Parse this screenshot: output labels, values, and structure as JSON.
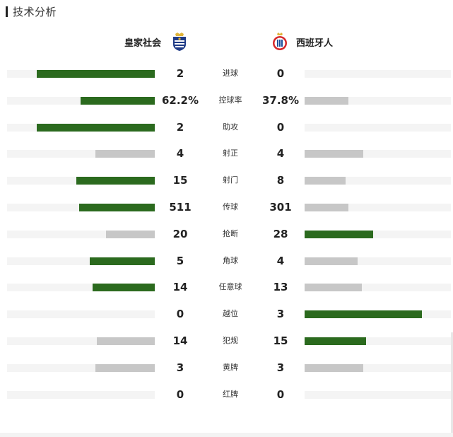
{
  "section": {
    "title": "技术分析"
  },
  "teams": {
    "home": {
      "name": "皇家社会",
      "logo_icon": "real-sociedad-crest-icon"
    },
    "away": {
      "name": "西班牙人",
      "logo_icon": "espanyol-crest-icon"
    }
  },
  "colors": {
    "win": "#2b6a1e",
    "lose": "#c7c7c7",
    "track": "#f4f4f4"
  },
  "stats": [
    {
      "label": "进球",
      "home": "2",
      "away": "0",
      "home_share": 0.8,
      "away_share": 0.0,
      "leader": "home"
    },
    {
      "label": "控球率",
      "home": "62.2%",
      "away": "37.8%",
      "home_share": 0.5,
      "away_share": 0.3,
      "leader": "home"
    },
    {
      "label": "助攻",
      "home": "2",
      "away": "0",
      "home_share": 0.8,
      "away_share": 0.0,
      "leader": "home"
    },
    {
      "label": "射正",
      "home": "4",
      "away": "4",
      "home_share": 0.4,
      "away_share": 0.4,
      "leader": "none"
    },
    {
      "label": "射门",
      "home": "15",
      "away": "8",
      "home_share": 0.53,
      "away_share": 0.28,
      "leader": "home"
    },
    {
      "label": "传球",
      "home": "511",
      "away": "301",
      "home_share": 0.51,
      "away_share": 0.3,
      "leader": "home"
    },
    {
      "label": "抢断",
      "home": "20",
      "away": "28",
      "home_share": 0.33,
      "away_share": 0.47,
      "leader": "away"
    },
    {
      "label": "角球",
      "home": "5",
      "away": "4",
      "home_share": 0.44,
      "away_share": 0.36,
      "leader": "home"
    },
    {
      "label": "任意球",
      "home": "14",
      "away": "13",
      "home_share": 0.42,
      "away_share": 0.39,
      "leader": "home"
    },
    {
      "label": "越位",
      "home": "0",
      "away": "3",
      "home_share": 0.0,
      "away_share": 0.8,
      "leader": "away"
    },
    {
      "label": "犯规",
      "home": "14",
      "away": "15",
      "home_share": 0.39,
      "away_share": 0.42,
      "leader": "away"
    },
    {
      "label": "黄牌",
      "home": "3",
      "away": "3",
      "home_share": 0.4,
      "away_share": 0.4,
      "leader": "none"
    },
    {
      "label": "红牌",
      "home": "0",
      "away": "0",
      "home_share": 0.0,
      "away_share": 0.0,
      "leader": "none"
    }
  ]
}
